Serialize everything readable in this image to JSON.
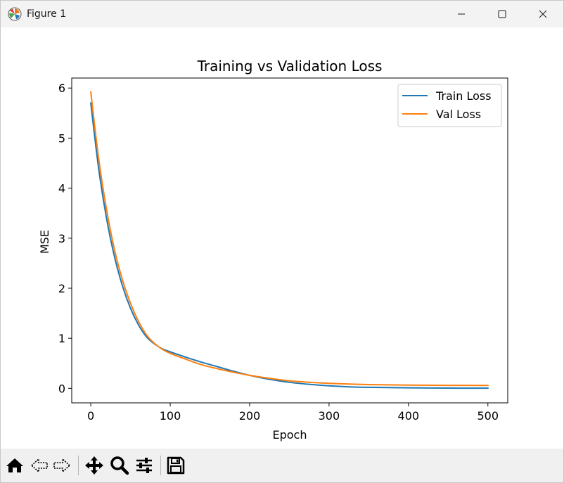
{
  "window": {
    "title": "Figure 1"
  },
  "icons": {
    "app": "matplotlib-icon",
    "minimize": "minimize-icon",
    "maximize": "maximize-icon",
    "close": "close-icon"
  },
  "toolbar": {
    "tools": [
      "home-icon",
      "back-icon",
      "forward-icon",
      "pan-icon",
      "zoom-icon",
      "configure-subplots-icon",
      "save-icon"
    ]
  },
  "chart_data": {
    "type": "line",
    "title": "Training vs Validation Loss",
    "xlabel": "Epoch",
    "ylabel": "MSE",
    "xlim": [
      -24,
      525
    ],
    "ylim": [
      -0.29,
      6.2
    ],
    "xticks": [
      0,
      100,
      200,
      300,
      400,
      500
    ],
    "yticks": [
      0,
      1,
      2,
      3,
      4,
      5,
      6
    ],
    "grid": false,
    "legend_position": "top-right",
    "x": [
      0,
      10,
      20,
      30,
      40,
      50,
      60,
      70,
      80,
      90,
      100,
      120,
      140,
      160,
      180,
      200,
      225,
      250,
      275,
      300,
      325,
      350,
      375,
      400,
      450,
      500
    ],
    "series": [
      {
        "name": "Train Loss",
        "color": "#1f77b4",
        "values": [
          5.7,
          4.38,
          3.38,
          2.62,
          2.04,
          1.6,
          1.27,
          1.03,
          0.89,
          0.79,
          0.73,
          0.62,
          0.52,
          0.43,
          0.34,
          0.26,
          0.18,
          0.12,
          0.08,
          0.05,
          0.03,
          0.02,
          0.015,
          0.01,
          0.005,
          0.003
        ]
      },
      {
        "name": "Val Loss",
        "color": "#ff7f0e",
        "values": [
          5.92,
          4.58,
          3.56,
          2.76,
          2.16,
          1.7,
          1.34,
          1.07,
          0.9,
          0.78,
          0.7,
          0.58,
          0.47,
          0.39,
          0.32,
          0.26,
          0.2,
          0.15,
          0.12,
          0.1,
          0.085,
          0.075,
          0.07,
          0.065,
          0.06,
          0.058
        ]
      }
    ]
  }
}
